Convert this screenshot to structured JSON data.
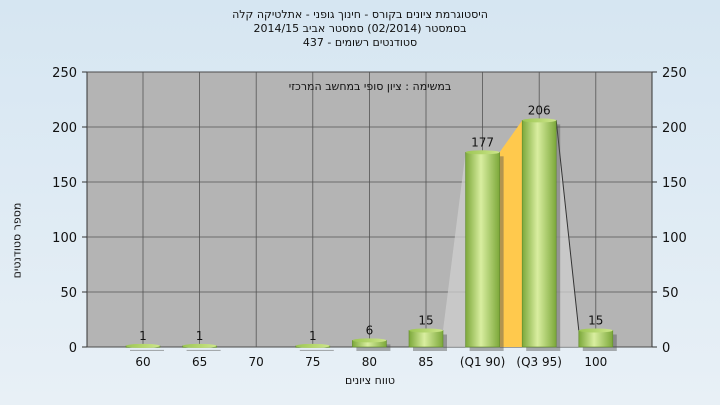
{
  "chart_data": {
    "type": "bar",
    "title": "היסטוגרמת ציונים בקורס - חינוך גופני - אתלטיקה קלה",
    "subtitle": "בסמסטר  (02/2014)  סמסטר אביב 2014/15",
    "subtitle2": "סטודנטים רשומים - 437",
    "annotation": "במשימה : ציון סופי במחשב המרכזי",
    "ylabel": "מספר סטודנטים",
    "xlabel": "טווח ציונים",
    "categories": [
      "60",
      "65",
      "70",
      "75",
      "80",
      "85",
      "(Q1 90)",
      "(Q3 95)",
      "100"
    ],
    "values": [
      1,
      1,
      0,
      1,
      6,
      15,
      177,
      206,
      15
    ],
    "data_labels": [
      "1",
      "1",
      "",
      "1",
      "6",
      "15",
      "177",
      "206",
      "15"
    ],
    "ylim": [
      0,
      250
    ],
    "yticks": [
      0,
      50,
      100,
      150,
      200,
      250
    ],
    "grid": true,
    "colors": {
      "plot_bg": "#b4b4b4",
      "bar_light": "#d9eea0",
      "bar_dark": "#7ca83a",
      "quartile_fill": "#ffc94d",
      "shade_fill": "#cfcfcf"
    }
  }
}
